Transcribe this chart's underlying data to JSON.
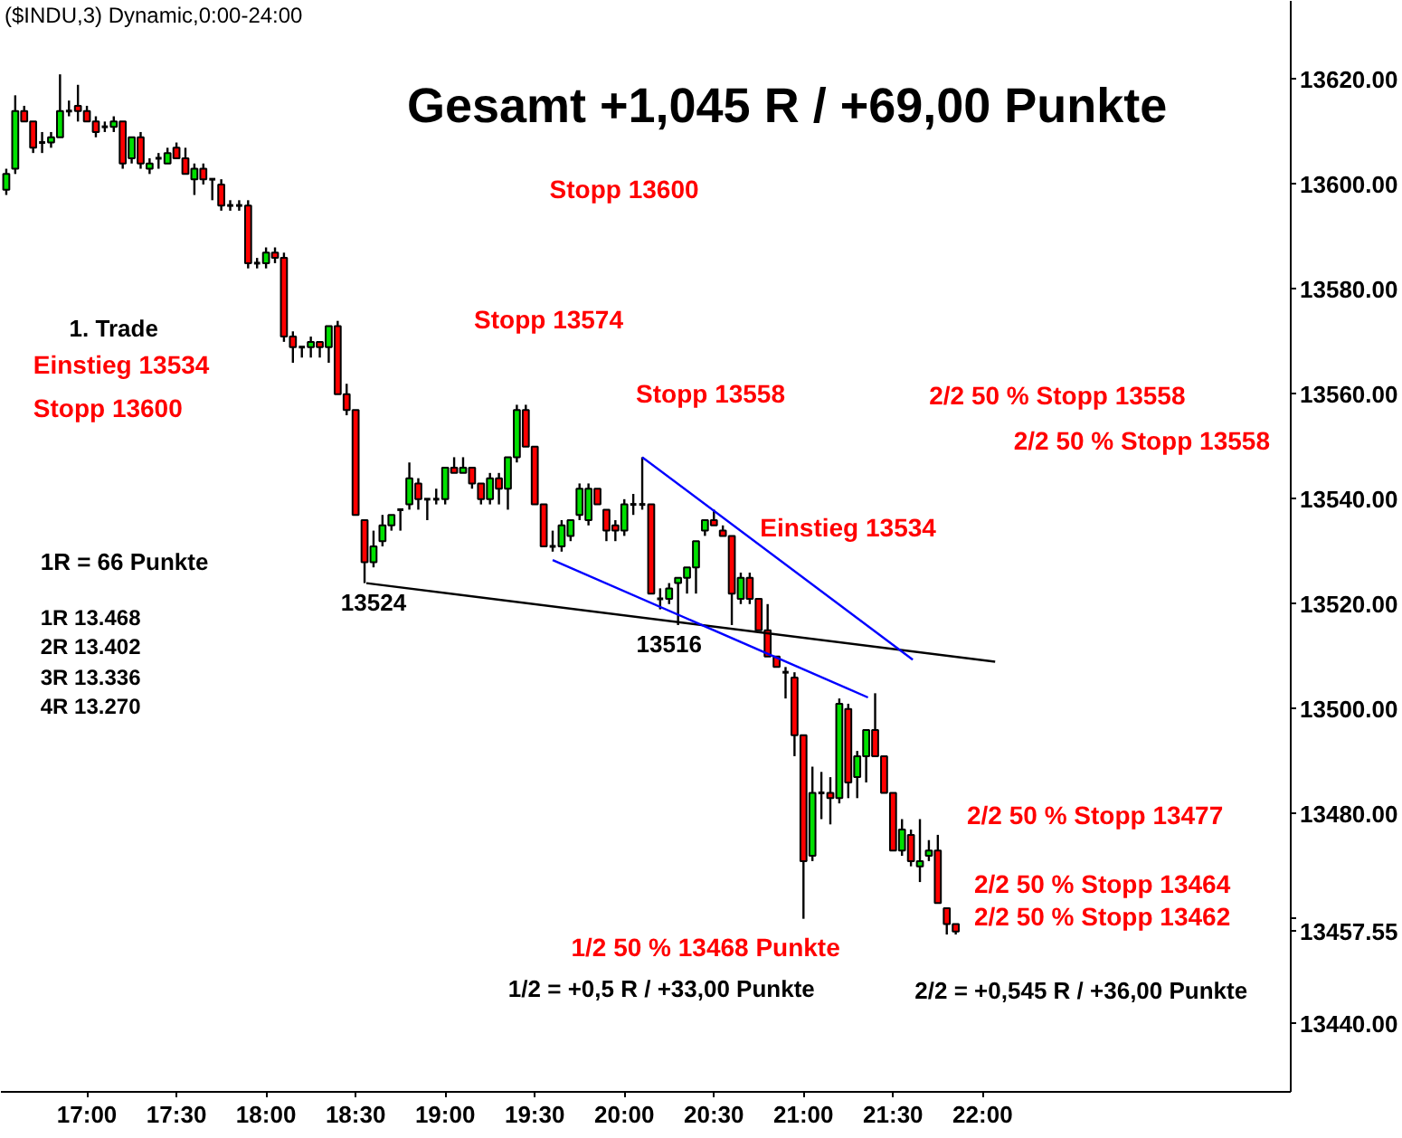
{
  "chart_data": {
    "type": "candlestick",
    "title": "($INDU,3) Dynamic,0:00-24:00",
    "x": [
      16.55,
      16.6,
      16.65,
      16.7,
      16.75,
      16.8,
      16.85,
      16.9,
      16.95,
      17,
      17.05,
      17.1,
      17.15,
      17.2,
      17.25,
      17.3,
      17.35,
      17.4,
      17.45,
      17.5,
      17.55,
      17.6,
      17.65,
      17.7,
      17.75,
      17.8,
      17.85,
      17.9,
      17.95,
      18,
      18.05,
      18.1,
      18.15,
      18.2,
      18.25,
      18.3,
      18.35,
      18.4,
      18.45,
      18.5,
      18.55,
      18.6,
      18.65,
      18.7,
      18.75,
      18.8,
      18.85,
      18.9,
      18.95,
      19,
      19.05,
      19.1,
      19.15,
      19.2,
      19.25,
      19.3,
      19.35,
      19.4,
      19.45,
      19.5,
      19.55,
      19.6,
      19.65,
      19.7,
      19.75,
      19.8,
      19.85,
      19.9,
      19.95,
      20,
      20.05,
      20.1,
      20.15,
      20.2,
      20.25,
      20.3,
      20.35,
      20.4,
      20.45,
      20.5,
      20.55,
      20.6,
      20.65,
      20.7,
      20.75,
      20.8,
      20.85,
      20.9,
      20.95,
      21,
      21.05,
      21.1,
      21.15,
      21.2,
      21.25,
      21.3,
      21.35,
      21.4,
      21.45,
      21.5,
      21.55,
      21.6,
      21.65,
      21.7,
      21.75,
      21.8,
      21.85
    ],
    "ohlc": [
      [
        13599,
        13603,
        13598,
        13602
      ],
      [
        13603,
        13617,
        13602,
        13614
      ],
      [
        13614,
        13615,
        13612,
        13612
      ],
      [
        13612,
        13612,
        13606,
        13607
      ],
      [
        13608,
        13610,
        13606,
        13608
      ],
      [
        13608,
        13610,
        13607,
        13609
      ],
      [
        13609,
        13621,
        13609,
        13614
      ],
      [
        13614,
        13616,
        13613,
        13614
      ],
      [
        13615,
        13619,
        13612,
        13614
      ],
      [
        13614,
        13615,
        13612,
        13612
      ],
      [
        13612,
        13613,
        13609,
        13610
      ],
      [
        13611,
        13612,
        13610,
        13611
      ],
      [
        13611,
        13613,
        13610,
        13612
      ],
      [
        13612,
        13612,
        13603,
        13604
      ],
      [
        13605,
        13609,
        13604,
        13609
      ],
      [
        13609,
        13610,
        13603,
        13604
      ],
      [
        13603,
        13605,
        13602,
        13604
      ],
      [
        13605,
        13606,
        13603,
        13605
      ],
      [
        13604,
        13607,
        13604,
        13606
      ],
      [
        13607,
        13608,
        13605,
        13605
      ],
      [
        13605,
        13607,
        13602,
        13602
      ],
      [
        13601,
        13604,
        13598,
        13603
      ],
      [
        13603,
        13604,
        13600,
        13601
      ],
      [
        13601,
        13601,
        13597,
        13601
      ],
      [
        13600,
        13601,
        13595,
        13596
      ],
      [
        13596,
        13597,
        13595,
        13596
      ],
      [
        13596,
        13597,
        13595,
        13596
      ],
      [
        13596,
        13597,
        13584,
        13585
      ],
      [
        13585,
        13586,
        13584,
        13585
      ],
      [
        13585,
        13588,
        13584,
        13587
      ],
      [
        13587,
        13588,
        13585,
        13586
      ],
      [
        13586,
        13587,
        13570,
        13571
      ],
      [
        13571,
        13572,
        13566,
        13569
      ],
      [
        13569,
        13569,
        13567,
        13569
      ],
      [
        13569,
        13571,
        13567,
        13570
      ],
      [
        13570,
        13570,
        13567,
        13569
      ],
      [
        13569,
        13573,
        13566,
        13573
      ],
      [
        13573,
        13574,
        13560,
        13560
      ],
      [
        13560,
        13562,
        13556,
        13557
      ],
      [
        13557,
        13557,
        13537,
        13537
      ],
      [
        13536,
        13536,
        13524,
        13528
      ],
      [
        13528,
        13534,
        13527,
        13531
      ],
      [
        13532,
        13537,
        13531,
        13535
      ],
      [
        13535,
        13537,
        13534,
        13537
      ],
      [
        13538,
        13538,
        13534,
        13538
      ],
      [
        13539,
        13547,
        13538,
        13544
      ],
      [
        13543,
        13544,
        13538,
        13540
      ],
      [
        13540,
        13540,
        13536,
        13540
      ],
      [
        13540,
        13542,
        13539,
        13540
      ],
      [
        13540,
        13546,
        13539,
        13546
      ],
      [
        13546,
        13548,
        13545,
        13545
      ],
      [
        13545,
        13548,
        13545,
        13546
      ],
      [
        13546,
        13546,
        13542,
        13543
      ],
      [
        13543,
        13543,
        13539,
        13540
      ],
      [
        13540,
        13545,
        13539,
        13544
      ],
      [
        13544,
        13545,
        13539,
        13542
      ],
      [
        13542,
        13548,
        13538,
        13548
      ],
      [
        13548,
        13558,
        13547,
        13557
      ],
      [
        13557,
        13558,
        13550,
        13550
      ],
      [
        13550,
        13550,
        13539,
        13539
      ],
      [
        13539,
        13539,
        13531,
        13531
      ],
      [
        13531,
        13534,
        13530,
        13531
      ],
      [
        13531,
        13536,
        13530,
        13535
      ],
      [
        13533,
        13536,
        13532,
        13536
      ],
      [
        13537,
        13543,
        13536,
        13542
      ],
      [
        13536,
        13543,
        13535,
        13542
      ],
      [
        13542,
        13542,
        13539,
        13539
      ],
      [
        13538,
        13538,
        13532,
        13534
      ],
      [
        13535,
        13536,
        13532,
        13534
      ],
      [
        13534,
        13540,
        13533,
        13539
      ],
      [
        13539,
        13541,
        13537,
        13539
      ],
      [
        13539,
        13548,
        13538,
        13539
      ],
      [
        13539,
        13539,
        13522,
        13522
      ],
      [
        13521,
        13523,
        13519,
        13521
      ],
      [
        13521,
        13524,
        13520,
        13523
      ],
      [
        13524,
        13525,
        13516,
        13525
      ],
      [
        13525,
        13527,
        13522,
        13527
      ],
      [
        13527,
        13532,
        13522,
        13532
      ],
      [
        13534,
        13536,
        13533,
        13536
      ],
      [
        13536,
        13538,
        13535,
        13535
      ],
      [
        13534,
        13535,
        13533,
        13533
      ],
      [
        13533,
        13533,
        13516,
        13522
      ],
      [
        13521,
        13526,
        13520,
        13525
      ],
      [
        13525,
        13526,
        13520,
        13521
      ],
      [
        13521,
        13521,
        13515,
        13515
      ],
      [
        13515,
        13520,
        13510,
        13510
      ],
      [
        13510,
        13510,
        13508,
        13508
      ],
      [
        13507,
        13508,
        13502,
        13507
      ],
      [
        13506,
        13507,
        13491,
        13495
      ],
      [
        13495,
        13495,
        13460,
        13471
      ],
      [
        13472,
        13489,
        13471,
        13484
      ],
      [
        13484,
        13488,
        13479,
        13484
      ],
      [
        13484,
        13487,
        13478,
        13483
      ],
      [
        13483,
        13502,
        13482,
        13501
      ],
      [
        13500,
        13501,
        13483,
        13486
      ],
      [
        13487,
        13492,
        13483,
        13491
      ],
      [
        13491,
        13496,
        13486,
        13496
      ],
      [
        13496,
        13503,
        13491,
        13491
      ],
      [
        13491,
        13491,
        13484,
        13484
      ],
      [
        13484,
        13484,
        13473,
        13473
      ],
      [
        13473,
        13479,
        13472,
        13477
      ],
      [
        13476,
        13477,
        13470,
        13471
      ],
      [
        13470,
        13479,
        13467,
        13471
      ],
      [
        13472,
        13475,
        13471,
        13473
      ],
      [
        13473,
        13476,
        13463,
        13463
      ],
      [
        13462,
        13462,
        13457,
        13459
      ],
      [
        13459,
        13459,
        13457,
        13457.55
      ]
    ],
    "series": [
      {
        "type": "line",
        "color": "#000000",
        "x": [
          18.56,
          22.07
        ],
        "values": [
          13524,
          13509
        ]
      },
      {
        "type": "line",
        "color": "#0000ff",
        "x": [
          20.1,
          21.61
        ],
        "values": [
          13548,
          13509.4
        ]
      },
      {
        "type": "line",
        "color": "#0000ff",
        "x": [
          19.6,
          21.36
        ],
        "values": [
          13528.4,
          13502.2
        ]
      }
    ],
    "xlim": [
      16.52,
      23.72
    ],
    "ylim": [
      13427,
      13635
    ],
    "xticks": [
      {
        "value": 17,
        "label": "17:00"
      },
      {
        "value": 17.5,
        "label": "17:30"
      },
      {
        "value": 18,
        "label": "18:00"
      },
      {
        "value": 18.5,
        "label": "18:30"
      },
      {
        "value": 19,
        "label": "19:00"
      },
      {
        "value": 19.5,
        "label": "19:30"
      },
      {
        "value": 20,
        "label": "20:00"
      },
      {
        "value": 20.5,
        "label": "20:30"
      },
      {
        "value": 21,
        "label": "21:00"
      },
      {
        "value": 21.5,
        "label": "21:30"
      },
      {
        "value": 22,
        "label": "22:00"
      }
    ],
    "yticks": [
      {
        "value": 13440,
        "label": "13440.00"
      },
      {
        "value": 13457.55,
        "label": "13457.55"
      },
      {
        "value": 13460,
        "label": null
      },
      {
        "value": 13480,
        "label": "13480.00"
      },
      {
        "value": 13500,
        "label": "13500.00"
      },
      {
        "value": 13520,
        "label": "13520.00"
      },
      {
        "value": 13540,
        "label": "13540.00"
      },
      {
        "value": 13560,
        "label": "13560.00"
      },
      {
        "value": 13580,
        "label": "13580.00"
      },
      {
        "value": 13600,
        "label": "13600.00"
      },
      {
        "value": 13620,
        "label": "13620.00"
      }
    ],
    "annotations": [
      "Gesamt +1,045 R / +69,00 Punkte",
      "Stopp 13600",
      "1. Trade",
      "Einstieg 13534",
      "Stopp 13574",
      "Stopp 13600",
      "Stopp 13558",
      "2/2 50 % Stopp 13558",
      "2/2 50 % Stopp 13558",
      "Einstieg 13534",
      "1R = 66 Punkte",
      "1R 13.468",
      "2R 13.402",
      "3R 13.336",
      "4R 13.270",
      "2/2 50 % Stopp 13477",
      "2/2 50 % Stopp 13464",
      "2/2 50 % Stopp 13462",
      "1/2 50 %  13468 Punkte",
      "1/2 = +0,5 R / +33,00 Punkte",
      "2/2 = +0,545 R / +36,00 Punkte",
      {
        "text": "13524",
        "x": 18.6,
        "y": 13524
      },
      {
        "text": "13516",
        "x": 20.25,
        "y": 13516
      }
    ]
  }
}
